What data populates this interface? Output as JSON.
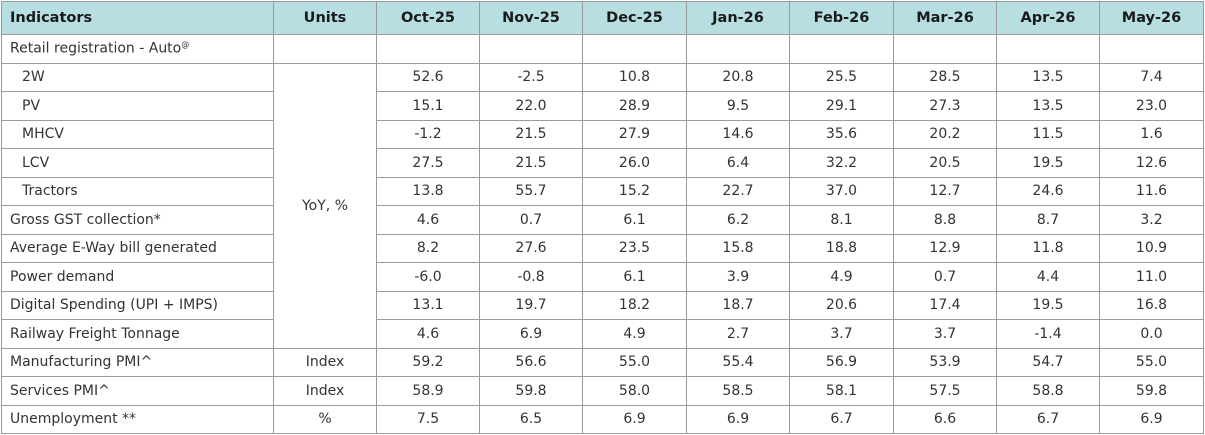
{
  "table": {
    "header": [
      "Indicators",
      "Units",
      "Oct-25",
      "Nov-25",
      "Dec-25",
      "Jan-26",
      "Feb-26",
      "Mar-26",
      "Apr-26",
      "May-26"
    ],
    "retail": {
      "label": "Retail registration - Auto",
      "mark": "@"
    },
    "yoy": {
      "units": "YoY, %",
      "auto_rows": [
        {
          "label": "2W",
          "values": [
            "52.6",
            "-2.5",
            "10.8",
            "20.8",
            "25.5",
            "28.5",
            "13.5",
            "7.4"
          ]
        },
        {
          "label": "PV",
          "values": [
            "15.1",
            "22.0",
            "28.9",
            "9.5",
            "29.1",
            "27.3",
            "13.5",
            "23.0"
          ]
        },
        {
          "label": "MHCV",
          "values": [
            "-1.2",
            "21.5",
            "27.9",
            "14.6",
            "35.6",
            "20.2",
            "11.5",
            "1.6"
          ]
        },
        {
          "label": "LCV",
          "values": [
            "27.5",
            "21.5",
            "26.0",
            "6.4",
            "32.2",
            "20.5",
            "19.5",
            "12.6"
          ]
        },
        {
          "label": "Tractors",
          "values": [
            "13.8",
            "55.7",
            "15.2",
            "22.7",
            "37.0",
            "12.7",
            "24.6",
            "11.6"
          ]
        }
      ],
      "rows": [
        {
          "label": "Gross GST collection*",
          "values": [
            "4.6",
            "0.7",
            "6.1",
            "6.2",
            "8.1",
            "8.8",
            "8.7",
            "3.2"
          ]
        },
        {
          "label": "Average E-Way bill generated",
          "values": [
            "8.2",
            "27.6",
            "23.5",
            "15.8",
            "18.8",
            "12.9",
            "11.8",
            "10.9"
          ]
        },
        {
          "label": "Power demand",
          "values": [
            "-6.0",
            "-0.8",
            "6.1",
            "3.9",
            "4.9",
            "0.7",
            "4.4",
            "11.0"
          ]
        },
        {
          "label": "Digital Spending (UPI + IMPS)",
          "values": [
            "13.1",
            "19.7",
            "18.2",
            "18.7",
            "20.6",
            "17.4",
            "19.5",
            "16.8"
          ]
        },
        {
          "label": "Railway Freight Tonnage",
          "values": [
            "4.6",
            "6.9",
            "4.9",
            "2.7",
            "3.7",
            "3.7",
            "-1.4",
            "0.0"
          ]
        }
      ]
    },
    "other_rows": [
      {
        "label": "Manufacturing PMI^",
        "units": "Index",
        "values": [
          "59.2",
          "56.6",
          "55.0",
          "55.4",
          "56.9",
          "53.9",
          "54.7",
          "55.0"
        ]
      },
      {
        "label": "Services PMI^",
        "units": "Index",
        "values": [
          "58.9",
          "59.8",
          "58.0",
          "58.5",
          "58.1",
          "57.5",
          "58.8",
          "59.8"
        ]
      },
      {
        "label": "Unemployment **",
        "units": "%",
        "values": [
          "7.5",
          "6.5",
          "6.9",
          "6.9",
          "6.7",
          "6.6",
          "6.7",
          "6.9"
        ]
      }
    ]
  }
}
